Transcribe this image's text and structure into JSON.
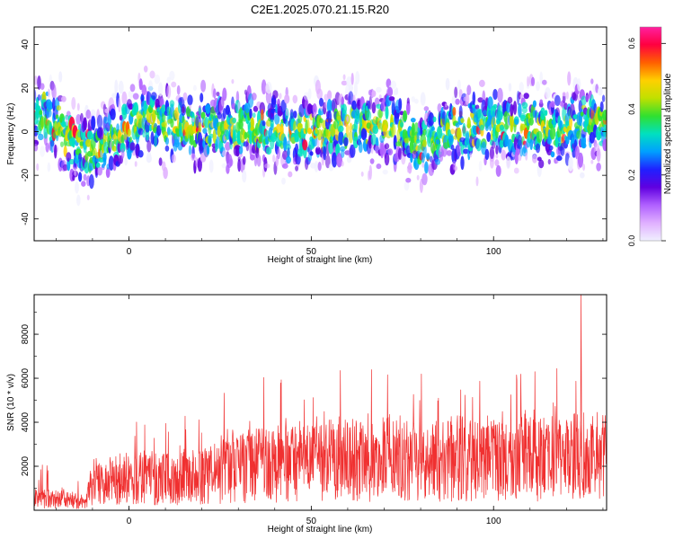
{
  "title": "C2E1.2025.070.21.15.R20",
  "chart_data": [
    {
      "type": "heatmap",
      "xlabel": "Height of straight line (km)",
      "ylabel": "Frequency (Hz)",
      "xlim": [
        -26,
        131
      ],
      "ylim": [
        -50,
        48
      ],
      "xticks": [
        0,
        50,
        100
      ],
      "yticks": [
        -40,
        -20,
        0,
        20,
        40
      ],
      "center_track": {
        "x": [
          -26,
          -20,
          -15,
          -10,
          -5,
          0,
          6,
          10,
          20,
          30,
          40,
          50,
          60,
          70,
          75,
          80,
          85,
          90,
          100,
          110,
          118,
          125,
          131
        ],
        "y": [
          9,
          4,
          -5,
          -10,
          -4,
          2,
          7,
          3,
          1,
          2,
          0,
          0,
          2,
          3,
          0,
          -7,
          -1,
          1,
          2,
          3,
          1,
          4,
          5
        ]
      },
      "colorbar": {
        "label": "Normalized spectral amplitude",
        "range": [
          0.0,
          0.65
        ],
        "ticks": [
          0.0,
          0.2,
          0.4,
          0.6
        ],
        "colormap": [
          "#f0f0ff",
          "#e0b0ff",
          "#b060ff",
          "#6000e0",
          "#2020ff",
          "#00a0ff",
          "#00e0c0",
          "#30e030",
          "#c0e000",
          "#ffd000",
          "#ff6000",
          "#ff0040",
          "#ff20a0"
        ]
      }
    },
    {
      "type": "line",
      "xlabel": "Height of straight line (km)",
      "ylabel": "SNR (10 * v/v)",
      "xlim": [
        -26,
        131
      ],
      "ylim": [
        0,
        9800
      ],
      "xticks": [
        0,
        50,
        100
      ],
      "yticks": [
        2000,
        4000,
        6000,
        8000
      ],
      "color": "#f03030",
      "envelope": {
        "x": [
          -26,
          -15,
          -12,
          -10,
          0,
          10,
          20,
          30,
          40,
          50,
          60,
          70,
          80,
          90,
          100,
          110,
          120,
          124,
          131
        ],
        "mean": [
          600,
          500,
          300,
          1300,
          1500,
          1600,
          1700,
          2200,
          2300,
          2400,
          2500,
          2600,
          2400,
          2600,
          2500,
          2600,
          2600,
          2800,
          2700
        ],
        "peak": [
          2200,
          2000,
          800,
          3400,
          4000,
          4200,
          4600,
          6200,
          6000,
          6600,
          6700,
          6500,
          6200,
          6400,
          6500,
          6800,
          7600,
          9800,
          6400
        ]
      }
    }
  ]
}
